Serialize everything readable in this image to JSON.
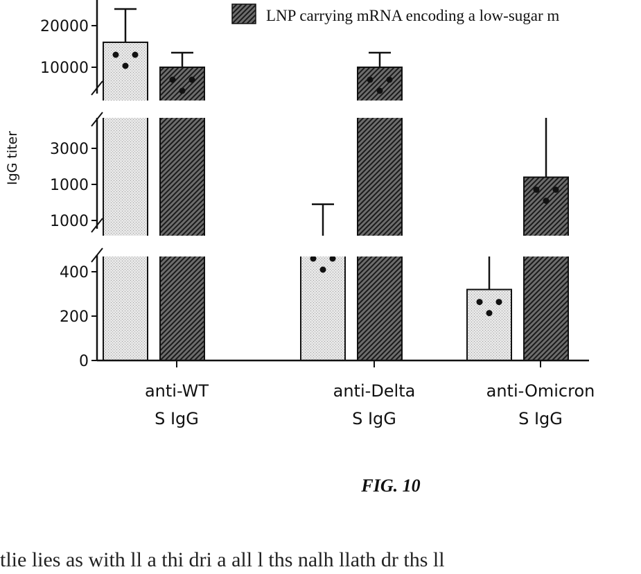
{
  "chart_data": {
    "type": "bar",
    "ylabel": "IgG titer",
    "y_axis_segments": [
      {
        "range": [
          0,
          400
        ],
        "ticks": [
          0,
          200,
          400
        ]
      },
      {
        "range": [
          1000,
          3000
        ],
        "tick_labels": [
          "1000",
          "1000",
          "3000"
        ]
      },
      {
        "range": [
          10000,
          20000
        ],
        "ticks": [
          10000,
          20000
        ]
      }
    ],
    "categories": [
      {
        "line1": "anti-WT",
        "line2": "S IgG"
      },
      {
        "line1": "anti-Delta",
        "line2": "S IgG"
      },
      {
        "line1": "anti-Omicron",
        "line2": "S IgG"
      }
    ],
    "series": [
      {
        "name": "",
        "values": [
          16000,
          900,
          320
        ],
        "errors": [
          24000,
          1450,
          420
        ],
        "color": "#d9d9d9"
      },
      {
        "name": "LNP carrying mRNA encoding a low-sugar m",
        "values": [
          10000,
          10000,
          2200
        ],
        "errors": [
          13500,
          13500,
          4000
        ],
        "color": "#5a5a5a"
      }
    ],
    "legend_position": "top-right"
  },
  "figure_caption": "FIG. 10",
  "bottom_text": "tlie lies as with ll a thi dri a all l ths nalh llath dr ths ll"
}
